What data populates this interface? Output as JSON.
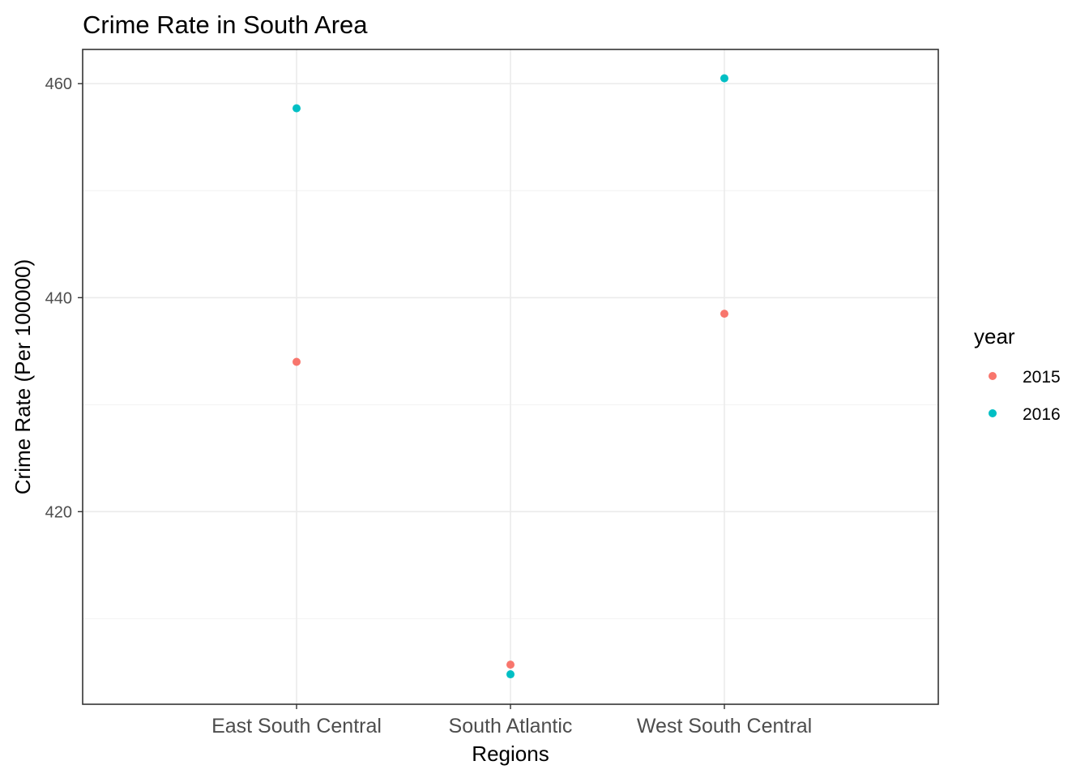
{
  "chart_data": {
    "type": "scatter",
    "title": "Crime Rate in South Area",
    "xlabel": "Regions",
    "ylabel": "Crime Rate (Per 100000)",
    "categories": [
      "East South Central",
      "South Atlantic",
      "West South Central"
    ],
    "y_ticks": [
      420,
      440,
      460
    ],
    "y_tick_labels": [
      "420",
      "440",
      "460"
    ],
    "ylim": [
      402.0,
      463.2
    ],
    "grid": true,
    "legend": {
      "title": "year",
      "position": "right"
    },
    "series": [
      {
        "name": "2015",
        "color": "#F8766D",
        "values": [
          434.0,
          405.7,
          438.5
        ]
      },
      {
        "name": "2016",
        "color": "#00BFC4",
        "values": [
          457.7,
          404.8,
          460.5
        ]
      }
    ]
  }
}
